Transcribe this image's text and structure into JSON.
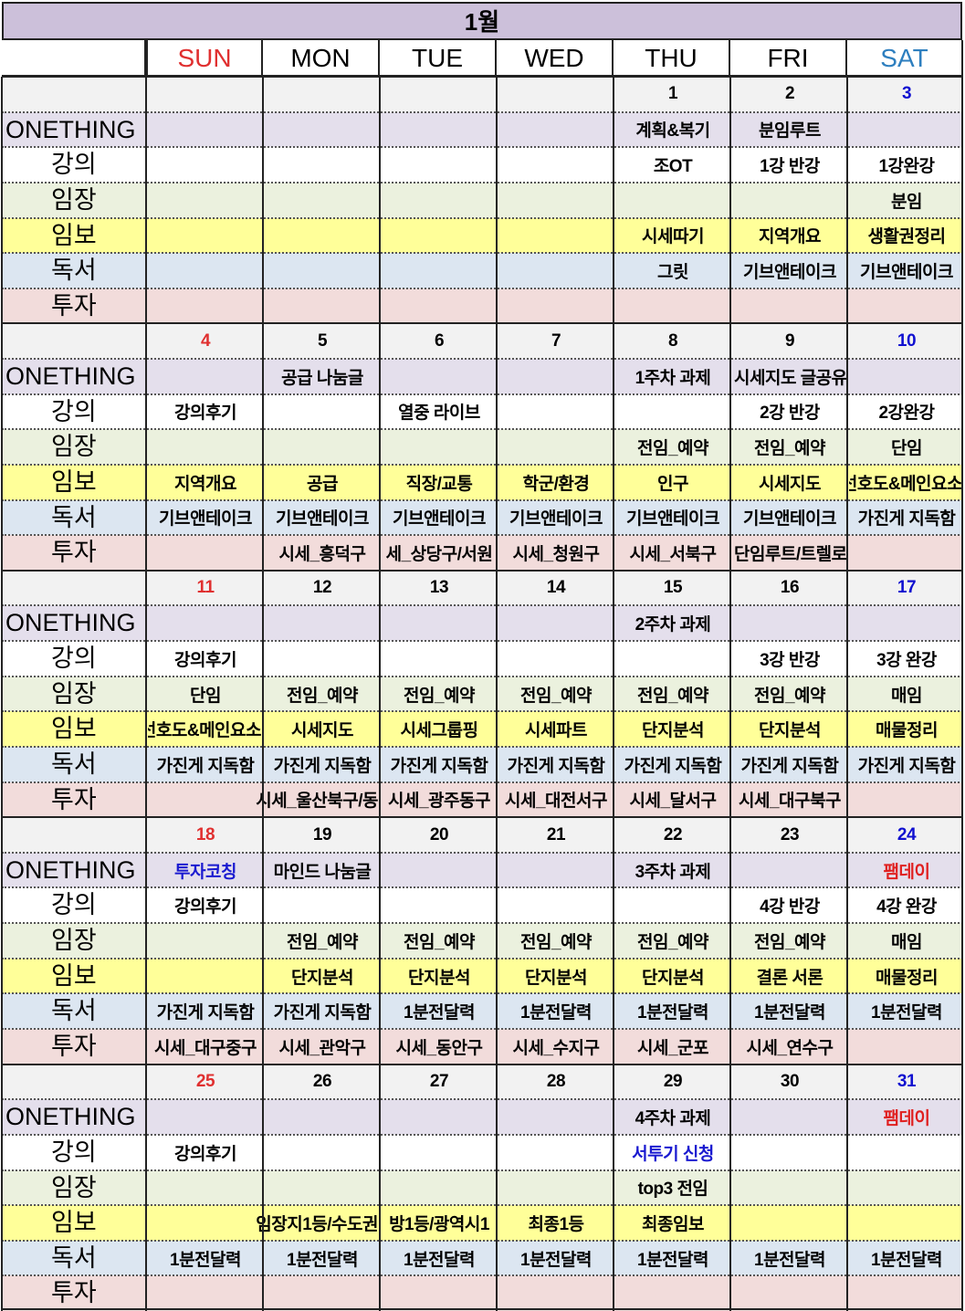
{
  "title": "1월",
  "row_labels": [
    "ONETHING",
    "강의",
    "임장",
    "임보",
    "독서",
    "투자"
  ],
  "days": [
    "SUN",
    "MON",
    "TUE",
    "WED",
    "THU",
    "FRI",
    "SAT"
  ],
  "colors": {
    "title_bg": "#ccc0da",
    "date_row": "#f2f2f2",
    "ONETHING": "#e4dfec",
    "강의": "#ffffff",
    "임장": "#ebf1de",
    "임보": "#ffff99",
    "독서": "#dce6f1",
    "투자": "#f2dcdb",
    "sun": "#e03030",
    "sat_header": "#2e7fbf",
    "sat_date": "#1010d0",
    "blue_text": "#1a1ad0",
    "red_text": "#e02020"
  },
  "weeks": [
    {
      "dates": [
        "",
        "",
        "",
        "",
        "1",
        "2",
        "3"
      ],
      "rows": [
        [
          "",
          "",
          "",
          "",
          "계획&복기",
          "분임루트",
          ""
        ],
        [
          "",
          "",
          "",
          "",
          "조OT",
          "1강 반강",
          "1강완강"
        ],
        [
          "",
          "",
          "",
          "",
          "",
          "",
          "분임"
        ],
        [
          "",
          "",
          "",
          "",
          "시세따기",
          "지역개요",
          "생활권정리"
        ],
        [
          "",
          "",
          "",
          "",
          "그릿",
          "기브앤테이크",
          "기브앤테이크"
        ],
        [
          "",
          "",
          "",
          "",
          "",
          "",
          ""
        ]
      ]
    },
    {
      "dates": [
        "4",
        "5",
        "6",
        "7",
        "8",
        "9",
        "10"
      ],
      "rows": [
        [
          "",
          "공급 나눔글",
          "",
          "",
          "1주차 과제",
          "시세지도 글공유",
          ""
        ],
        [
          "강의후기",
          "",
          "열중 라이브",
          "",
          "",
          "2강 반강",
          "2강완강"
        ],
        [
          "",
          "",
          "",
          "",
          "전임_예약",
          "전임_예약",
          "단임"
        ],
        [
          "지역개요",
          "공급",
          "직장/교통",
          "학군/환경",
          "인구",
          "시세지도",
          "선호도&메인요소"
        ],
        [
          "기브앤테이크",
          "기브앤테이크",
          "기브앤테이크",
          "기브앤테이크",
          "기브앤테이크",
          "기브앤테이크",
          "가진게 지독함"
        ],
        [
          "",
          "시세_흥덕구",
          "세_상당구/서원",
          "시세_청원구",
          "시세_서북구",
          "단임루트/트렐로",
          ""
        ]
      ]
    },
    {
      "dates": [
        "11",
        "12",
        "13",
        "14",
        "15",
        "16",
        "17"
      ],
      "rows": [
        [
          "",
          "",
          "",
          "",
          "2주차 과제",
          "",
          ""
        ],
        [
          "강의후기",
          "",
          "",
          "",
          "",
          "3강 반강",
          "3강 완강"
        ],
        [
          "단임",
          "전임_예약",
          "전임_예약",
          "전임_예약",
          "전임_예약",
          "전임_예약",
          "매임"
        ],
        [
          "선호도&메인요소",
          "시세지도",
          "시세그룹핑",
          "시세파트",
          "단지분석",
          "단지분석",
          "매물정리"
        ],
        [
          "가진게 지독함",
          "가진게 지독함",
          "가진게 지독함",
          "가진게 지독함",
          "가진게 지독함",
          "가진게 지독함",
          "가진게 지독함"
        ],
        [
          "",
          "시세_울산북구/동",
          "시세_광주동구",
          "시세_대전서구",
          "시세_달서구",
          "시세_대구북구",
          ""
        ]
      ]
    },
    {
      "dates": [
        "18",
        "19",
        "20",
        "21",
        "22",
        "23",
        "24"
      ],
      "rows": [
        [
          "투자코칭",
          "마인드 나눔글",
          "",
          "",
          "3주차 과제",
          "",
          "팸데이"
        ],
        [
          "강의후기",
          "",
          "",
          "",
          "",
          "4강 반강",
          "4강 완강"
        ],
        [
          "",
          "전임_예약",
          "전임_예약",
          "전임_예약",
          "전임_예약",
          "전임_예약",
          "매임"
        ],
        [
          "",
          "단지분석",
          "단지분석",
          "단지분석",
          "단지분석",
          "결론 서론",
          "매물정리"
        ],
        [
          "가진게 지독함",
          "가진게 지독함",
          "1분전달력",
          "1분전달력",
          "1분전달력",
          "1분전달력",
          "1분전달력"
        ],
        [
          "시세_대구중구",
          "시세_관악구",
          "시세_동안구",
          "시세_수지구",
          "시세_군포",
          "시세_연수구",
          ""
        ]
      ]
    },
    {
      "dates": [
        "25",
        "26",
        "27",
        "28",
        "29",
        "30",
        "31"
      ],
      "rows": [
        [
          "",
          "",
          "",
          "",
          "4주차 과제",
          "",
          "팸데이"
        ],
        [
          "강의후기",
          "",
          "",
          "",
          "서투기 신청",
          "",
          ""
        ],
        [
          "",
          "",
          "",
          "",
          "top3 전임",
          "",
          ""
        ],
        [
          "",
          "임장지1등/수도권",
          "방1등/광역시1",
          "최종1등",
          "최종임보",
          "",
          ""
        ],
        [
          "1분전달력",
          "1분전달력",
          "1분전달력",
          "1분전달력",
          "1분전달력",
          "1분전달력",
          "1분전달력"
        ],
        [
          "",
          "",
          "",
          "",
          "",
          "",
          ""
        ]
      ]
    }
  ],
  "text_colors": {
    "3-0-0": "blue_text",
    "3-0-6": "red_text",
    "4-0-6": "red_text",
    "4-1-4": "blue_text"
  }
}
